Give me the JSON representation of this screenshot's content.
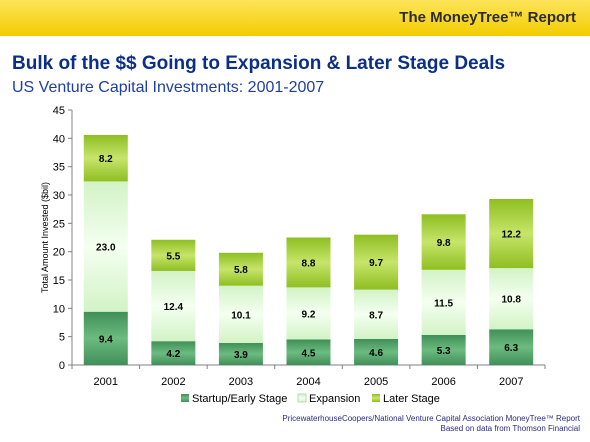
{
  "banner": {
    "report_title": "The MoneyTree™ Report"
  },
  "header": {
    "title": "Bulk of the $$ Going to Expansion & Later Stage Deals",
    "subtitle": "US Venture Capital Investments: 2001-2007"
  },
  "source": {
    "line1": "PricewaterhouseCoopers/National Venture Capital Association MoneyTree™ Report",
    "line2": "Based on data from Thomson Financial"
  },
  "colors": {
    "startup": "#5aa96f",
    "expansion": "#e4f9dc",
    "later": "#a8cf3c",
    "title": "#0c2f86",
    "banner": "#f6d21a"
  },
  "chart_data": {
    "type": "bar",
    "stacked": true,
    "categories": [
      "2001",
      "2002",
      "2003",
      "2004",
      "2005",
      "2006",
      "2007"
    ],
    "series": [
      {
        "name": "Startup/Early Stage",
        "values": [
          9.4,
          4.2,
          3.9,
          4.5,
          4.6,
          5.3,
          6.3
        ]
      },
      {
        "name": "Expansion",
        "values": [
          23.0,
          12.4,
          10.1,
          9.2,
          8.7,
          11.5,
          10.8
        ]
      },
      {
        "name": "Later Stage",
        "values": [
          8.2,
          5.5,
          5.8,
          8.8,
          9.7,
          9.8,
          12.2
        ]
      }
    ],
    "value_labels": [
      [
        "9.4",
        "4.2",
        "3.9",
        "4.5",
        "4.6",
        "5.3",
        "6.3"
      ],
      [
        "23.0",
        "12.4",
        "10.1",
        "9.2",
        "8.7",
        "11.5",
        "10.8"
      ],
      [
        "8.2",
        "5.5",
        "5.8",
        "8.8",
        "9.7",
        "9.8",
        "12.2"
      ]
    ],
    "ylabel": "Total Amount Invested ($bil)",
    "ylim": [
      0,
      45
    ],
    "yticks": [
      "0",
      "5",
      "10",
      "15",
      "20",
      "25",
      "30",
      "35",
      "40",
      "45"
    ],
    "legend_position": "bottom",
    "grid": false
  }
}
